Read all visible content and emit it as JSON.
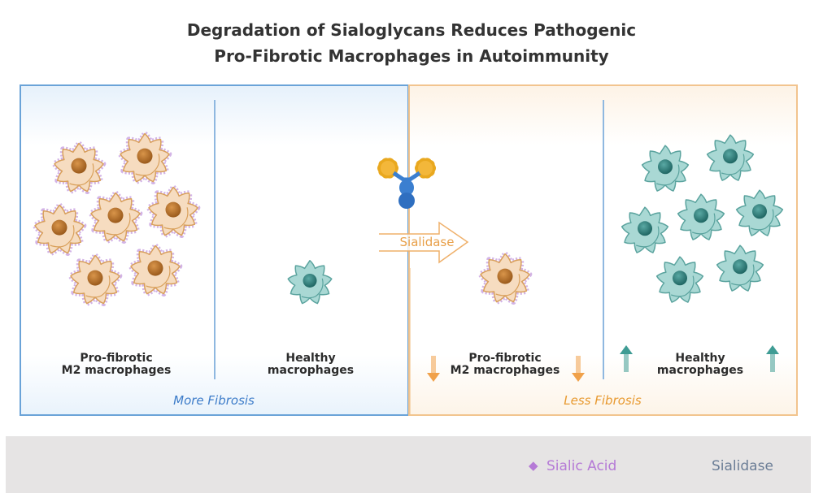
{
  "title": {
    "line1": "Degradation of Sialoglycans Reduces Pathogenic",
    "line2": "Pro-Fibrotic Macrophages in Autoimmunity"
  },
  "left_panel": {
    "pro_fibrotic_label": {
      "line1": "Pro-fibrotic",
      "line2": "M2 macrophages"
    },
    "healthy_label": {
      "line1": "Healthy",
      "line2": "macrophages"
    },
    "caption": "More Fibrosis"
  },
  "treatment_arrow": {
    "label": "Sialidase"
  },
  "right_panel": {
    "pro_fibrotic_label": {
      "line1": "Pro-fibrotic",
      "line2": "M2 macrophages"
    },
    "healthy_label": {
      "line1": "Healthy",
      "line2": "macrophages"
    },
    "caption": "Less Fibrosis",
    "pro_fibrotic_trend": "down-arrow-icon",
    "healthy_trend": "up-arrow-icon"
  },
  "legend": {
    "sialic_acid": "Sialic Acid",
    "sialidase": "Sialidase"
  },
  "colors": {
    "blue_panel": "#6aa3d8",
    "orange_panel": "#f2c48e",
    "more_fibrosis": "#3d7cc9",
    "less_fibrosis": "#e8992f",
    "sialic_acid": "#b57ad6",
    "pro_fibrotic_cell": "#f6dcc0",
    "healthy_cell": "#a9d8d4",
    "legend_bg": "#e6e4e4"
  }
}
